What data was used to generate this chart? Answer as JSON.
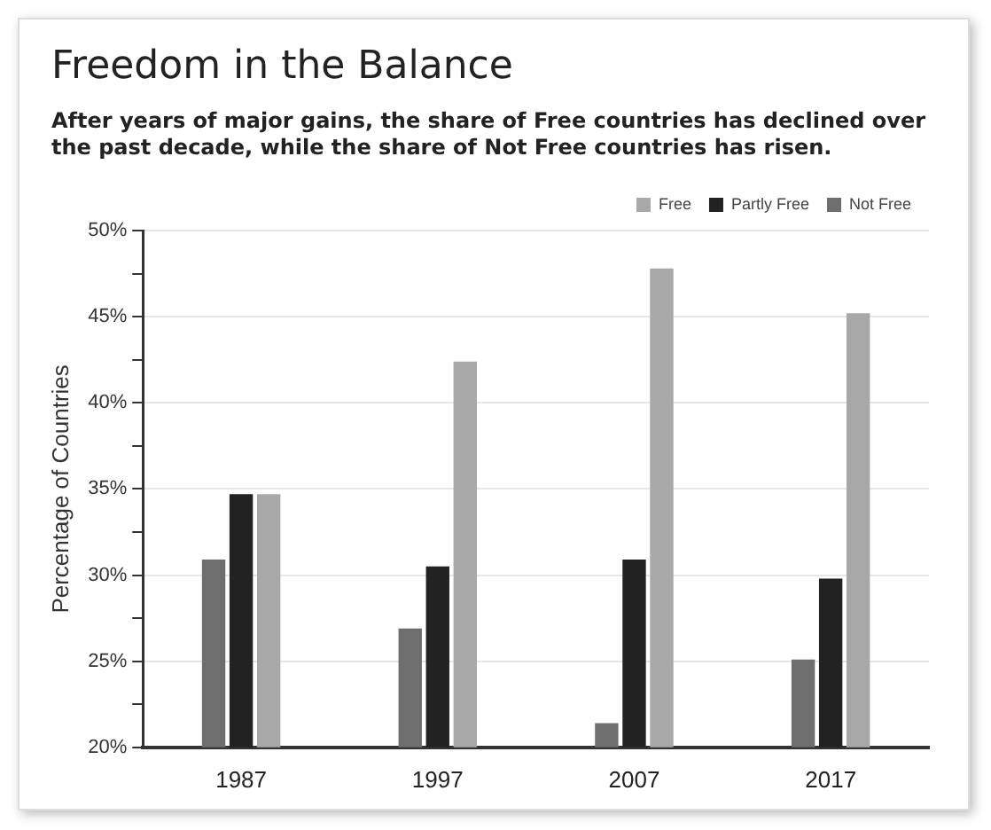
{
  "chart_data": {
    "type": "bar",
    "title": "Freedom in the Balance",
    "subtitle": "After years of major gains, the share of Free countries has declined over the past decade, while the share of Not Free countries has risen.",
    "ylabel": "Percentage of Countries",
    "categories": [
      "1987",
      "1997",
      "2007",
      "2017"
    ],
    "series": [
      {
        "name": "Not Free",
        "color": "#6e6e6e",
        "values": [
          30.9,
          26.9,
          21.4,
          25.1
        ]
      },
      {
        "name": "Partly Free",
        "color": "#222222",
        "values": [
          34.7,
          30.5,
          30.9,
          29.8
        ]
      },
      {
        "name": "Free",
        "color": "#a8a8a8",
        "values": [
          34.7,
          42.4,
          47.8,
          45.2
        ]
      }
    ],
    "ylim": [
      20,
      50
    ],
    "yticks": [
      {
        "value": 20,
        "label": "20%"
      },
      {
        "value": 22.5,
        "label": null
      },
      {
        "value": 25,
        "label": "25%"
      },
      {
        "value": 27.5,
        "label": null
      },
      {
        "value": 30,
        "label": "30%"
      },
      {
        "value": 32.5,
        "label": null
      },
      {
        "value": 35,
        "label": "35%"
      },
      {
        "value": 37.5,
        "label": null
      },
      {
        "value": 40,
        "label": "40%"
      },
      {
        "value": 42.5,
        "label": null
      },
      {
        "value": 45,
        "label": "45%"
      },
      {
        "value": 47.5,
        "label": null
      },
      {
        "value": 50,
        "label": "50%"
      }
    ],
    "grid": "y",
    "legend": "top right"
  }
}
